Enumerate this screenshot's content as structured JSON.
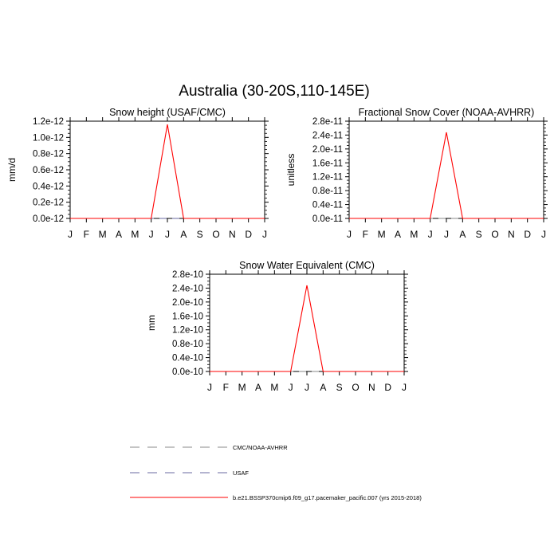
{
  "title": "Australia (30-20S,110-145E)",
  "month_labels": [
    "J",
    "F",
    "M",
    "A",
    "M",
    "J",
    "J",
    "A",
    "S",
    "O",
    "N",
    "D",
    "J"
  ],
  "legend": [
    {
      "label": "CMC/NOAA-AVHRR",
      "color": "#888888",
      "dash": "long"
    },
    {
      "label": "USAF",
      "color": "#6a6aa0",
      "dash": "long"
    },
    {
      "label": "b.e21.BSSP370cmip6.f09_g17.pacemaker_pacific.007 (yrs 2015-2018)",
      "color": "#ff0000",
      "dash": "solid"
    }
  ],
  "chart_data": [
    {
      "type": "line",
      "title": "Snow height (USAF/CMC)",
      "ylabel": "mm/d",
      "xlabel": "",
      "ylim": [
        0,
        1.2e-12
      ],
      "yticks": [
        "0.0e-12",
        "0.2e-12",
        "0.4e-12",
        "0.6e-12",
        "0.8e-12",
        "1.0e-12",
        "1.2e-12"
      ],
      "x": [
        "Jan",
        "Feb",
        "Mar",
        "Apr",
        "May",
        "Jun",
        "Jul",
        "Aug",
        "Sep",
        "Oct",
        "Nov",
        "Dec",
        "Jan"
      ],
      "series": [
        {
          "color": "#ff0000",
          "dash": "solid",
          "values": [
            0,
            0,
            0,
            0,
            0,
            0,
            1.16e-12,
            0,
            0,
            0,
            0,
            0,
            0
          ]
        },
        {
          "color": "#6a6aa0",
          "dash": "long",
          "values": [
            0,
            0,
            0,
            0,
            0,
            0,
            0,
            0,
            0,
            0,
            0,
            0,
            0
          ]
        }
      ]
    },
    {
      "type": "line",
      "title": "Fractional Snow Cover (NOAA-AVHRR)",
      "ylabel": "unitless",
      "xlabel": "",
      "ylim": [
        0,
        2.8e-11
      ],
      "yticks": [
        "0.0e-11",
        "0.4e-11",
        "0.8e-11",
        "1.2e-11",
        "1.6e-11",
        "2.0e-11",
        "2.4e-11",
        "2.8e-11"
      ],
      "x": [
        "Jan",
        "Feb",
        "Mar",
        "Apr",
        "May",
        "Jun",
        "Jul",
        "Aug",
        "Sep",
        "Oct",
        "Nov",
        "Dec",
        "Jan"
      ],
      "series": [
        {
          "color": "#ff0000",
          "dash": "solid",
          "values": [
            0,
            0,
            0,
            0,
            0,
            0,
            2.48e-11,
            0,
            0,
            0,
            0,
            0,
            0
          ]
        },
        {
          "color": "#888888",
          "dash": "long",
          "values": [
            0,
            0,
            0,
            0,
            0,
            0,
            0,
            0,
            0,
            0,
            0,
            0,
            0
          ]
        }
      ]
    },
    {
      "type": "line",
      "title": "Snow Water Equivalent (CMC)",
      "ylabel": "mm",
      "xlabel": "",
      "ylim": [
        0,
        2.8e-10
      ],
      "yticks": [
        "0.0e-10",
        "0.4e-10",
        "0.8e-10",
        "1.2e-10",
        "1.6e-10",
        "2.0e-10",
        "2.4e-10",
        "2.8e-10"
      ],
      "x": [
        "Jan",
        "Feb",
        "Mar",
        "Apr",
        "May",
        "Jun",
        "Jul",
        "Aug",
        "Sep",
        "Oct",
        "Nov",
        "Dec",
        "Jan"
      ],
      "series": [
        {
          "color": "#ff0000",
          "dash": "solid",
          "values": [
            0,
            0,
            0,
            0,
            0,
            0,
            2.48e-10,
            0,
            0,
            0,
            0,
            0,
            0
          ]
        },
        {
          "color": "#888888",
          "dash": "long",
          "values": [
            0,
            0,
            0,
            0,
            0,
            0,
            0,
            0,
            0,
            0,
            0,
            0,
            0
          ]
        }
      ]
    }
  ]
}
